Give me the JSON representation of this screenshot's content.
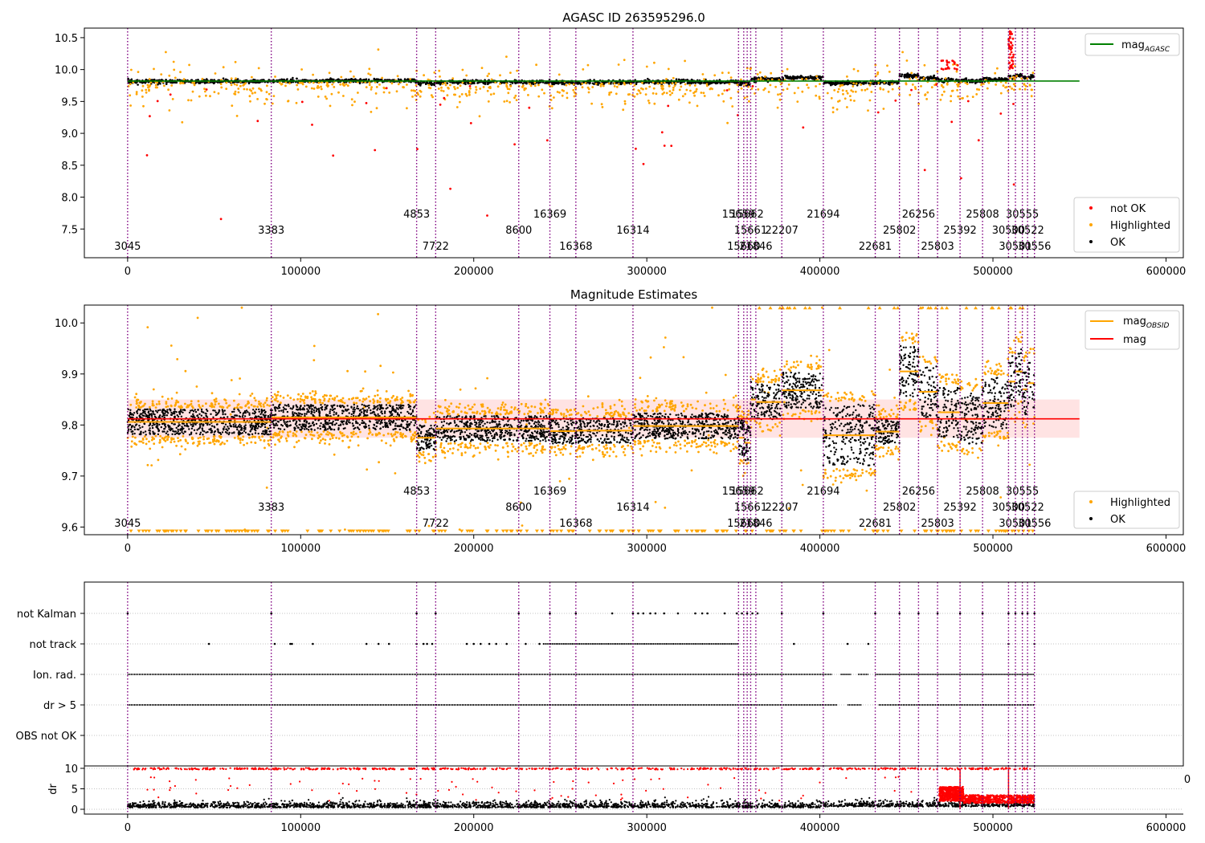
{
  "figure": {
    "background": "#ffffff"
  },
  "colors": {
    "ok": "#000000",
    "highlighted": "#ffa500",
    "not_ok": "#ff0000",
    "agasc_line": "#008000",
    "mag_line": "#ff0000",
    "mag_band": "#ffc0c0",
    "obsid_line": "#ffa500",
    "obs_vline": "#800080",
    "grid": "#b0b0b0"
  },
  "chart_data": [
    {
      "type": "scatter",
      "title": "AGASC ID 263595296.0",
      "xlim": [
        -25000,
        610000
      ],
      "ylim": [
        7.05,
        10.65
      ],
      "xticks": [
        0,
        100000,
        200000,
        300000,
        400000,
        500000,
        600000
      ],
      "yticks": [
        7.5,
        8.0,
        8.5,
        9.0,
        9.5,
        10.0,
        10.5
      ],
      "legend_lines": [
        {
          "label": "mag",
          "sub": "AGASC",
          "color": "#008000"
        }
      ],
      "legend_points": [
        {
          "label": "not OK",
          "color": "#ff0000"
        },
        {
          "label": "Highlighted",
          "color": "#ffa500"
        },
        {
          "label": "OK",
          "color": "#000000"
        }
      ],
      "legend_lines_position": "upper-right",
      "legend_points_position": "lower-right",
      "agasc_mag": 9.82,
      "agasc_xrange": [
        0,
        550000
      ]
    },
    {
      "type": "scatter",
      "title": "Magnitude Estimates",
      "xlim": [
        -25000,
        610000
      ],
      "ylim": [
        9.585,
        10.035
      ],
      "xticks": [
        0,
        100000,
        200000,
        300000,
        400000,
        500000,
        600000
      ],
      "yticks": [
        9.6,
        9.7,
        9.8,
        9.9,
        10.0
      ],
      "legend_lines": [
        {
          "label": "mag",
          "sub": "OBSID",
          "color": "#ffa500"
        },
        {
          "label": "mag",
          "sub": "",
          "color": "#ff0000"
        }
      ],
      "legend_points": [
        {
          "label": "Highlighted",
          "color": "#ffa500"
        },
        {
          "label": "OK",
          "color": "#000000"
        }
      ],
      "legend_lines_position": "upper-right",
      "legend_points_position": "lower-right",
      "mag": 9.812,
      "mag_band": [
        9.775,
        9.85
      ],
      "mag_xrange": [
        0,
        550000
      ],
      "obsid_segments": [
        {
          "x": [
            0,
            83000
          ],
          "mag": 9.806
        },
        {
          "x": [
            83000,
            167000
          ],
          "mag": 9.815
        },
        {
          "x": [
            167000,
            178000
          ],
          "mag": 9.775
        },
        {
          "x": [
            178000,
            226000
          ],
          "mag": 9.793
        },
        {
          "x": [
            226000,
            244000
          ],
          "mag": 9.793
        },
        {
          "x": [
            244000,
            259000
          ],
          "mag": 9.788
        },
        {
          "x": [
            259000,
            292000
          ],
          "mag": 9.789
        },
        {
          "x": [
            292000,
            353000
          ],
          "mag": 9.798
        },
        {
          "x": [
            353000,
            356500
          ],
          "mag": 9.775
        },
        {
          "x": [
            356500,
            360000
          ],
          "mag": 9.765
        },
        {
          "x": [
            360000,
            363000
          ],
          "mag": 9.85
        },
        {
          "x": [
            363000,
            378000
          ],
          "mag": 9.845
        },
        {
          "x": [
            378000,
            402000
          ],
          "mag": 9.868
        },
        {
          "x": [
            402000,
            432000
          ],
          "mag": 9.78
        },
        {
          "x": [
            432000,
            446000
          ],
          "mag": 9.787
        },
        {
          "x": [
            446000,
            457000
          ],
          "mag": 9.905
        },
        {
          "x": [
            457000,
            468000
          ],
          "mag": 9.865
        },
        {
          "x": [
            468000,
            481000
          ],
          "mag": 9.825
        },
        {
          "x": [
            481000,
            494000
          ],
          "mag": 9.812
        },
        {
          "x": [
            494000,
            509000
          ],
          "mag": 9.843
        },
        {
          "x": [
            509000,
            513000
          ],
          "mag": 9.885
        },
        {
          "x": [
            513000,
            517000
          ],
          "mag": 9.905
        },
        {
          "x": [
            517000,
            520000
          ],
          "mag": 9.87
        },
        {
          "x": [
            520000,
            524000
          ],
          "mag": 9.882
        }
      ]
    },
    {
      "type": "scatter",
      "title": "",
      "xlim": [
        -25000,
        610000
      ],
      "categories": [
        "not Kalman",
        "not track",
        "Ion. rad.",
        "dr > 5",
        "OBS not OK"
      ],
      "flags": {
        "not Kalman": [
          0,
          83000,
          167000,
          178000,
          226000,
          244000,
          259000,
          280000,
          292000,
          295000,
          298000,
          302000,
          305000,
          310000,
          318000,
          328000,
          332000,
          335000,
          345000,
          352000,
          355000,
          358000,
          361000,
          364000,
          378000,
          402000,
          432000,
          446000,
          457000,
          468000,
          481000,
          494000,
          509000,
          513000,
          517000,
          520000,
          524000
        ],
        "not track": [
          47000,
          85000,
          94000,
          95000,
          107000,
          138000,
          145000,
          151000,
          167000,
          171000,
          173000,
          176000,
          196000,
          200000,
          204000,
          209000,
          213000,
          219000,
          230000,
          238000,
          509000,
          524000,
          385000,
          416000,
          428000
        ],
        "not_track_dense": [
          240000,
          353000
        ]
      },
      "dense_ranges": {
        "Ion. rad.": [
          [
            0,
            407000
          ],
          [
            412000,
            418000
          ],
          [
            422000,
            428000
          ],
          [
            432000,
            524000
          ]
        ],
        "dr > 5": [
          [
            0,
            410000
          ],
          [
            416000,
            424000
          ],
          [
            434000,
            524000
          ]
        ]
      }
    },
    {
      "type": "scatter",
      "title": "",
      "ylabel": "dr",
      "xlim": [
        -25000,
        610000
      ],
      "ylim": [
        -0.5,
        10.5
      ],
      "xticks": [
        0,
        100000,
        200000,
        300000,
        400000,
        500000,
        600000
      ],
      "yticks": [
        0,
        5,
        10
      ],
      "overlapping_tick": "0"
    }
  ],
  "observations": [
    {
      "x": 0,
      "label": "3045",
      "row": 2
    },
    {
      "x": 83000,
      "label": "3383",
      "row": 1
    },
    {
      "x": 167000,
      "label": "4853",
      "row": 0
    },
    {
      "x": 178000,
      "label": "7722",
      "row": 2
    },
    {
      "x": 226000,
      "label": "8600",
      "row": 1
    },
    {
      "x": 244000,
      "label": "16369",
      "row": 0
    },
    {
      "x": 259000,
      "label": "16368",
      "row": 2
    },
    {
      "x": 292000,
      "label": "16314",
      "row": 1
    },
    {
      "x": 353000,
      "label": "15659",
      "row": 0
    },
    {
      "x": 356000,
      "label": "15660",
      "row": 2
    },
    {
      "x": 358000,
      "label": "15662",
      "row": 0
    },
    {
      "x": 360000,
      "label": "15661",
      "row": 1
    },
    {
      "x": 363000,
      "label": "21846",
      "row": 2
    },
    {
      "x": 378000,
      "label": "22207",
      "row": 1
    },
    {
      "x": 402000,
      "label": "21694",
      "row": 0
    },
    {
      "x": 432000,
      "label": "22681",
      "row": 2
    },
    {
      "x": 446000,
      "label": "25802",
      "row": 1
    },
    {
      "x": 457000,
      "label": "26256",
      "row": 0
    },
    {
      "x": 468000,
      "label": "25803",
      "row": 2
    },
    {
      "x": 481000,
      "label": "25392",
      "row": 1
    },
    {
      "x": 494000,
      "label": "25808",
      "row": 0
    },
    {
      "x": 509000,
      "label": "30500",
      "row": 1
    },
    {
      "x": 513000,
      "label": "30501",
      "row": 2
    },
    {
      "x": 517000,
      "label": "30555",
      "row": 0
    },
    {
      "x": 520000,
      "label": "30522",
      "row": 1
    },
    {
      "x": 524000,
      "label": "30556",
      "row": 2
    }
  ]
}
